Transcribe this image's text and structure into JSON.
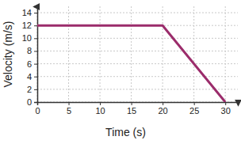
{
  "chart_data": {
    "type": "line",
    "x_label": "Time (s)",
    "y_label": "Velocity (m/s)",
    "x": [
      0,
      20,
      30
    ],
    "values": [
      12,
      12,
      0
    ],
    "color": "#9b2c6b",
    "xlim": [
      0,
      32
    ],
    "xticks": [
      0,
      5,
      10,
      15,
      20,
      25,
      30
    ],
    "ylim": [
      0,
      15
    ],
    "yticks": [
      0,
      2,
      4,
      6,
      8,
      10,
      12,
      14
    ],
    "grid": true
  }
}
